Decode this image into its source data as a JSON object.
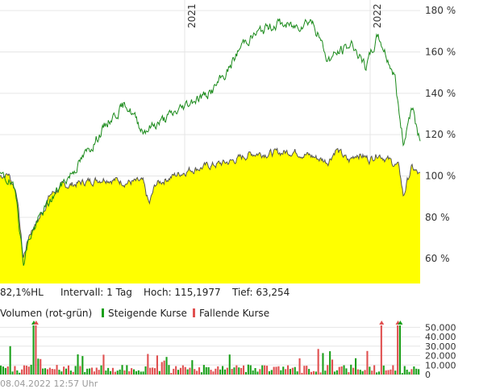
{
  "chart_data": [
    {
      "type": "area",
      "x_years": [
        "2021",
        "2022"
      ],
      "y_ticks": [
        60,
        80,
        100,
        120,
        140,
        160,
        180
      ],
      "y_tick_labels": [
        "60 %",
        "80 %",
        "100 %",
        "120 %",
        "140 %",
        "160 %",
        "180 %"
      ],
      "ylim": [
        48,
        182
      ],
      "grid": true,
      "series": [
        {
          "color": "#ffff00",
          "line_color": "#555555",
          "x": [
            0,
            0.02,
            0.04,
            0.055,
            0.07,
            0.085,
            0.095,
            0.12,
            0.15,
            0.2,
            0.25,
            0.3,
            0.34,
            0.355,
            0.37,
            0.4,
            0.45,
            0.5,
            0.55,
            0.6,
            0.65,
            0.7,
            0.75,
            0.78,
            0.8,
            0.83,
            0.85,
            0.88,
            0.9,
            0.93,
            0.95,
            0.96,
            0.97,
            0.98,
            1.0
          ],
          "values": [
            100,
            101,
            92,
            60,
            72,
            77,
            80,
            91,
            95,
            97,
            99,
            97,
            97,
            86,
            96,
            99,
            103,
            105,
            107,
            111,
            111,
            112,
            109,
            107,
            113,
            107,
            111,
            108,
            111,
            107,
            104,
            90,
            98,
            104,
            100
          ]
        },
        {
          "color": "#1a8a1a",
          "x": [
            0,
            0.02,
            0.04,
            0.055,
            0.07,
            0.1,
            0.14,
            0.18,
            0.22,
            0.26,
            0.3,
            0.34,
            0.38,
            0.42,
            0.46,
            0.5,
            0.54,
            0.58,
            0.62,
            0.66,
            0.7,
            0.74,
            0.76,
            0.78,
            0.8,
            0.84,
            0.87,
            0.9,
            0.92,
            0.94,
            0.95,
            0.96,
            0.98,
            1.0
          ],
          "values": [
            100,
            98,
            90,
            58,
            70,
            82,
            94,
            104,
            115,
            127,
            135,
            122,
            126,
            131,
            137,
            140,
            150,
            165,
            170,
            174,
            172,
            176,
            167,
            156,
            159,
            164,
            152,
            168,
            158,
            148,
            130,
            116,
            134,
            116
          ]
        }
      ],
      "stats": {
        "label": "82,1%HL",
        "interval": "Intervall: 1 Tag",
        "high": "Hoch: 115,1977",
        "low": "Tief:  63,254"
      }
    },
    {
      "type": "bar",
      "title": "Volumen (rot-grün)",
      "legend": [
        {
          "name": "Steigende Kurse",
          "color": "#1aa01a"
        },
        {
          "name": "Fallende Kurse",
          "color": "#e05050"
        }
      ],
      "y_ticks": [
        0,
        10000,
        20000,
        30000,
        40000,
        50000
      ],
      "y_tick_labels": [
        "0",
        "10.000",
        "20.000",
        "30.000",
        "40.000",
        "50.000"
      ],
      "ylim": [
        0,
        52000
      ],
      "bar_count": 180,
      "values_seed": 42
    }
  ],
  "footer": {
    "timestamp": "08.04.2022 12:57 Uhr"
  }
}
